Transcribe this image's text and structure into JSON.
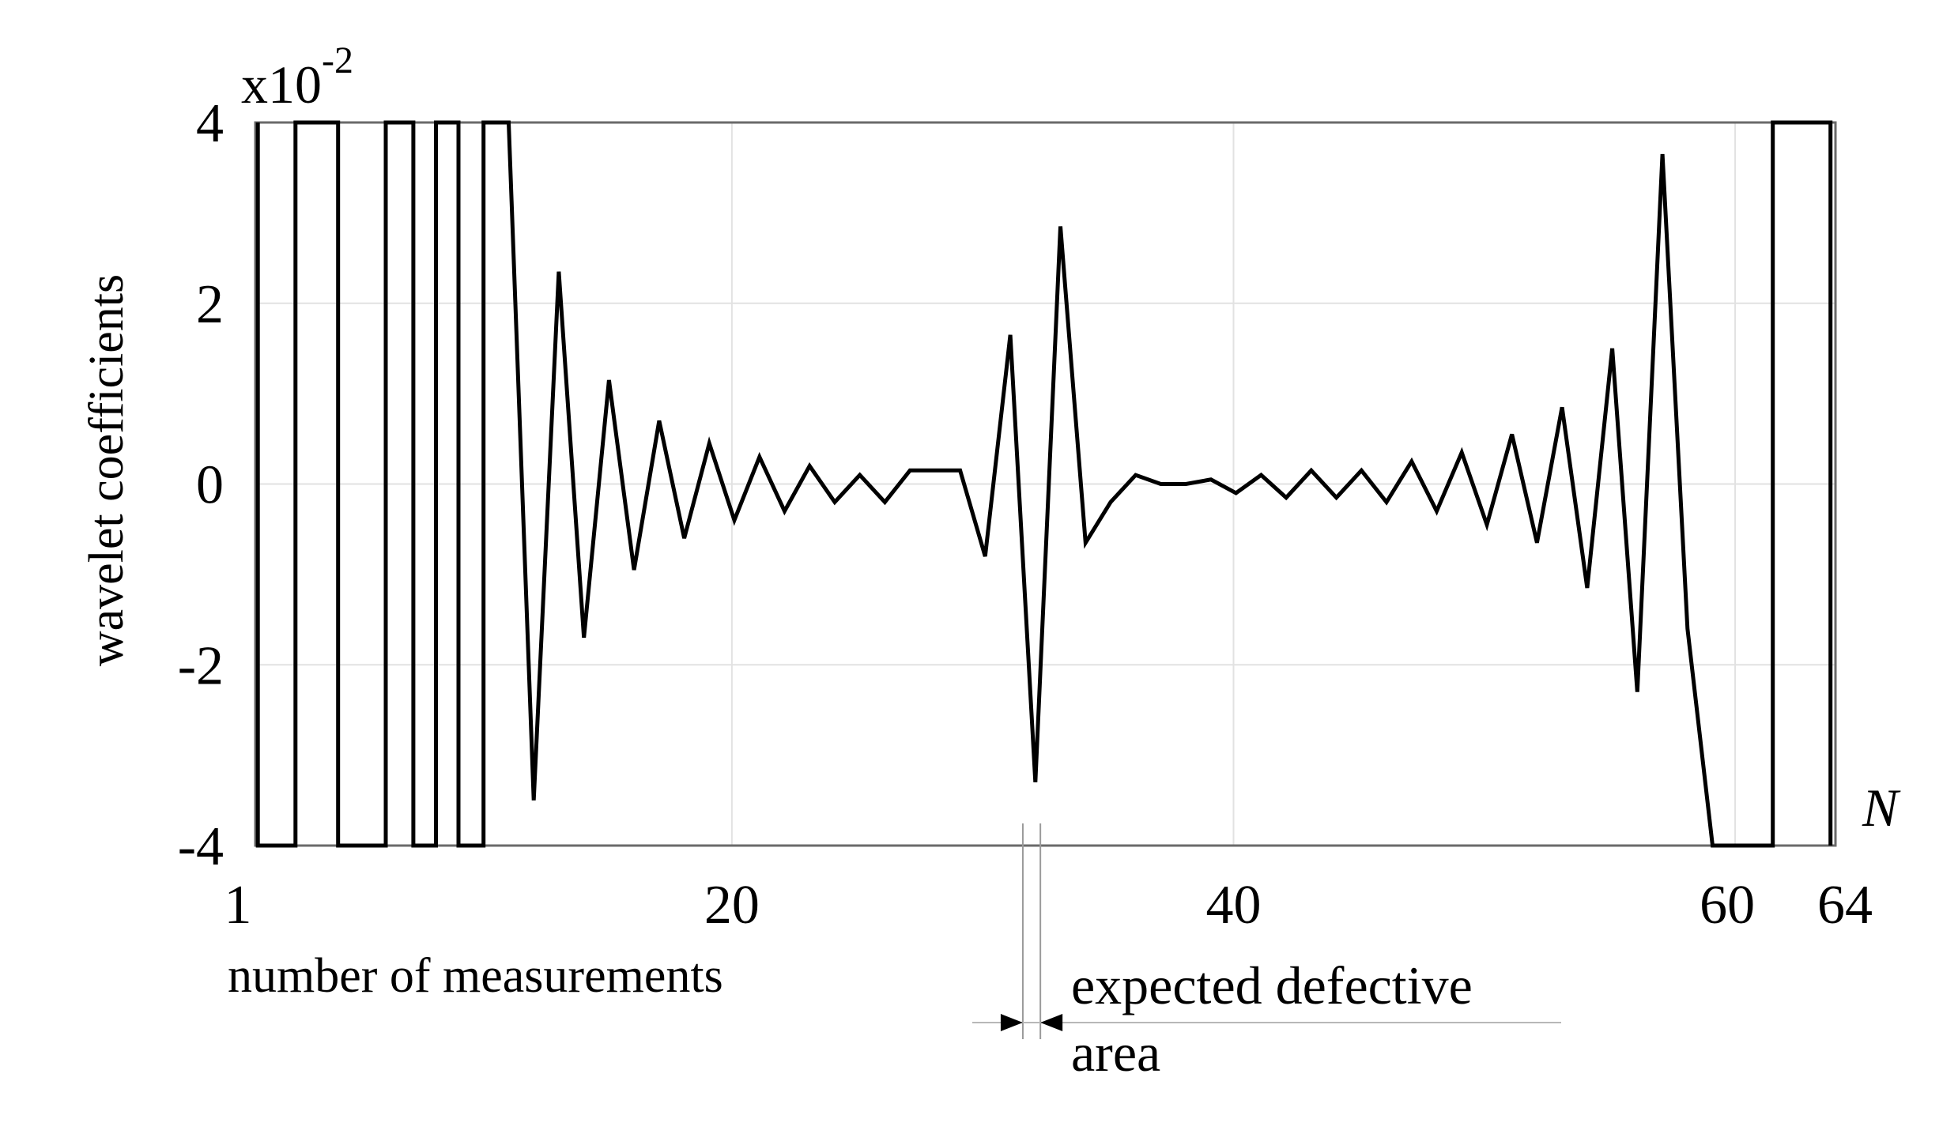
{
  "chart_data": {
    "type": "line",
    "ylabel": "wavelet coefficients",
    "xlabel": "number of measurements",
    "axis_symbol": "N",
    "scale_multiplier": {
      "base": "x10",
      "exponent": "-2"
    },
    "xlim": [
      1,
      64
    ],
    "ylim": [
      -4,
      4
    ],
    "x_ticks": [
      1,
      20,
      40,
      60,
      64
    ],
    "y_ticks": [
      -4,
      -2,
      0,
      2,
      4
    ],
    "grid": true,
    "annotation": {
      "line1": "expected defective",
      "line2": "area",
      "x_range": [
        31.6,
        32.3
      ]
    },
    "series": [
      {
        "x": [
          1.1,
          1.1,
          2.6,
          2.6,
          4.3,
          4.3,
          6.2,
          6.2,
          7.3,
          7.3,
          8.2,
          8.2,
          9.1,
          9.1,
          10.1,
          10.1,
          11.1,
          12.1,
          13.1,
          14.1,
          15.1,
          16.1,
          17.1,
          18.1,
          19.1,
          20.1,
          21.1,
          22.1,
          23.1,
          24.1,
          25.1,
          26.1,
          27.1,
          28.1,
          29.1,
          30.1,
          31.1,
          32.1,
          33.1,
          34.1,
          35.1,
          36.1,
          37.1,
          38.1,
          39.1,
          40.1,
          41.1,
          42.1,
          43.1,
          44.1,
          45.1,
          46.1,
          47.1,
          48.1,
          49.1,
          50.1,
          51.1,
          52.1,
          53.1,
          54.1,
          55.1,
          56.1,
          57.1,
          58.1,
          59.1,
          59.8,
          61.5,
          61.5,
          63.8,
          63.8
        ],
        "values": [
          4,
          -4,
          -4,
          4,
          4,
          -4,
          -4,
          4,
          4,
          -4,
          -4,
          4,
          4,
          -4,
          -4,
          4,
          4,
          -3.5,
          2.35,
          -1.7,
          1.15,
          -0.95,
          0.7,
          -0.6,
          0.45,
          -0.4,
          0.3,
          -0.3,
          0.2,
          -0.2,
          0.1,
          -0.2,
          0.15,
          0.15,
          0.15,
          -0.8,
          1.65,
          -3.3,
          2.85,
          -0.65,
          -0.2,
          0.1,
          0,
          0,
          0.05,
          -0.1,
          0.1,
          -0.15,
          0.15,
          -0.15,
          0.15,
          -0.2,
          0.25,
          -0.3,
          0.35,
          -0.45,
          0.55,
          -0.65,
          0.85,
          -1.15,
          1.5,
          -2.3,
          3.65,
          -1.6,
          -4,
          -4,
          -4,
          4,
          4,
          -4
        ]
      }
    ]
  }
}
